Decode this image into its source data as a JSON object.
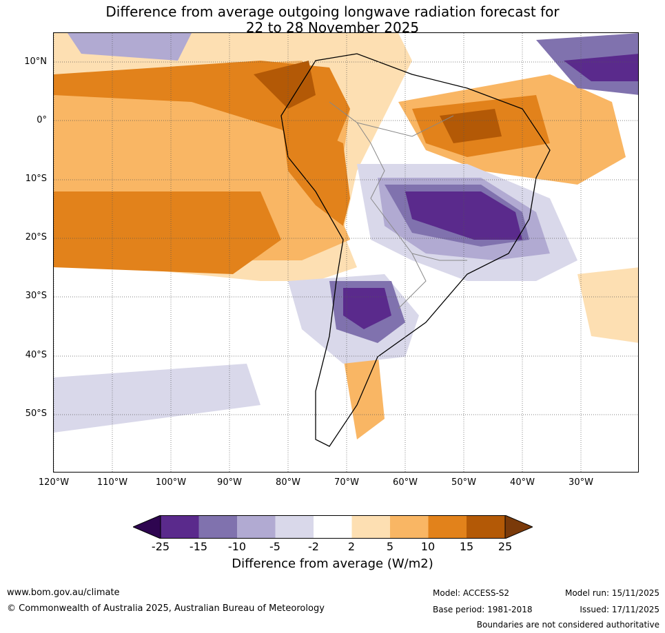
{
  "title": {
    "line1": "Difference from average outgoing longwave radiation forecast for",
    "line2": "22 to 28 November 2025"
  },
  "lat_labels": [
    "10°N",
    "0°",
    "10°S",
    "20°S",
    "30°S",
    "40°S",
    "50°S"
  ],
  "lon_labels": [
    "120°W",
    "110°W",
    "100°W",
    "90°W",
    "80°W",
    "70°W",
    "60°W",
    "50°W",
    "40°W",
    "30°W"
  ],
  "legend": {
    "ticks": [
      "-25",
      "-15",
      "-10",
      "-5",
      "-2",
      "2",
      "5",
      "10",
      "15",
      "25"
    ],
    "colors": [
      "#2e0550",
      "#5a2a8c",
      "#8072ae",
      "#b1aad2",
      "#d9d8ea",
      "#ffffff",
      "#fddfb2",
      "#f9b664",
      "#e2821b",
      "#b35906",
      "#7a3a0a"
    ],
    "label": "Difference from average (W/m2)"
  },
  "footer": {
    "website": "www.bom.gov.au/climate",
    "copyright": "© Commonwealth of Australia 2025, Australian Bureau of Meteorology",
    "model": "Model: ACCESS-S2",
    "base_period": "Base period: 1981-2018",
    "model_run": "Model run: 15/11/2025",
    "issued": "Issued: 17/11/2025",
    "boundaries_note": "Boundaries are not considered authoritative"
  }
}
